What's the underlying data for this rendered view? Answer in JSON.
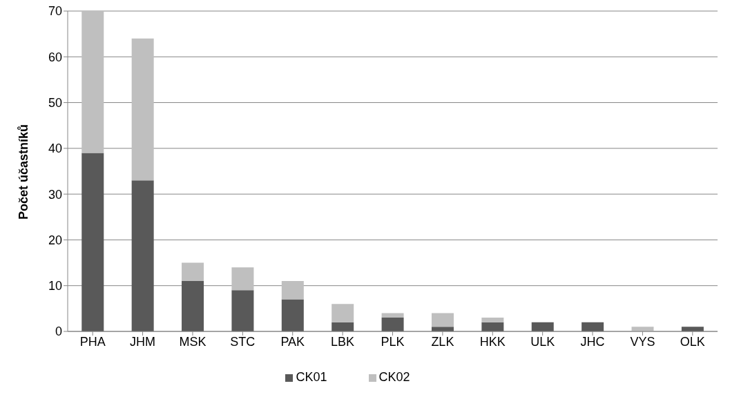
{
  "chart_data": {
    "type": "bar",
    "ylabel": "Počet účastníků",
    "stacked": true,
    "categories": [
      "PHA",
      "JHM",
      "MSK",
      "STC",
      "PAK",
      "LBK",
      "PLK",
      "ZLK",
      "HKK",
      "ULK",
      "JHC",
      "VYS",
      "OLK"
    ],
    "series": [
      {
        "name": "CK01",
        "color": "#595959",
        "values": [
          39,
          33,
          11,
          9,
          7,
          2,
          3,
          1,
          2,
          2,
          2,
          0,
          1
        ]
      },
      {
        "name": "CK02",
        "color": "#bfbfbf",
        "values": [
          31,
          31,
          4,
          5,
          4,
          4,
          1,
          3,
          1,
          0,
          0,
          1,
          0
        ]
      }
    ],
    "ylim": [
      0,
      70
    ],
    "yticks": [
      0,
      10,
      20,
      30,
      40,
      50,
      60,
      70
    ],
    "grid": "y",
    "legend": "bottom"
  }
}
